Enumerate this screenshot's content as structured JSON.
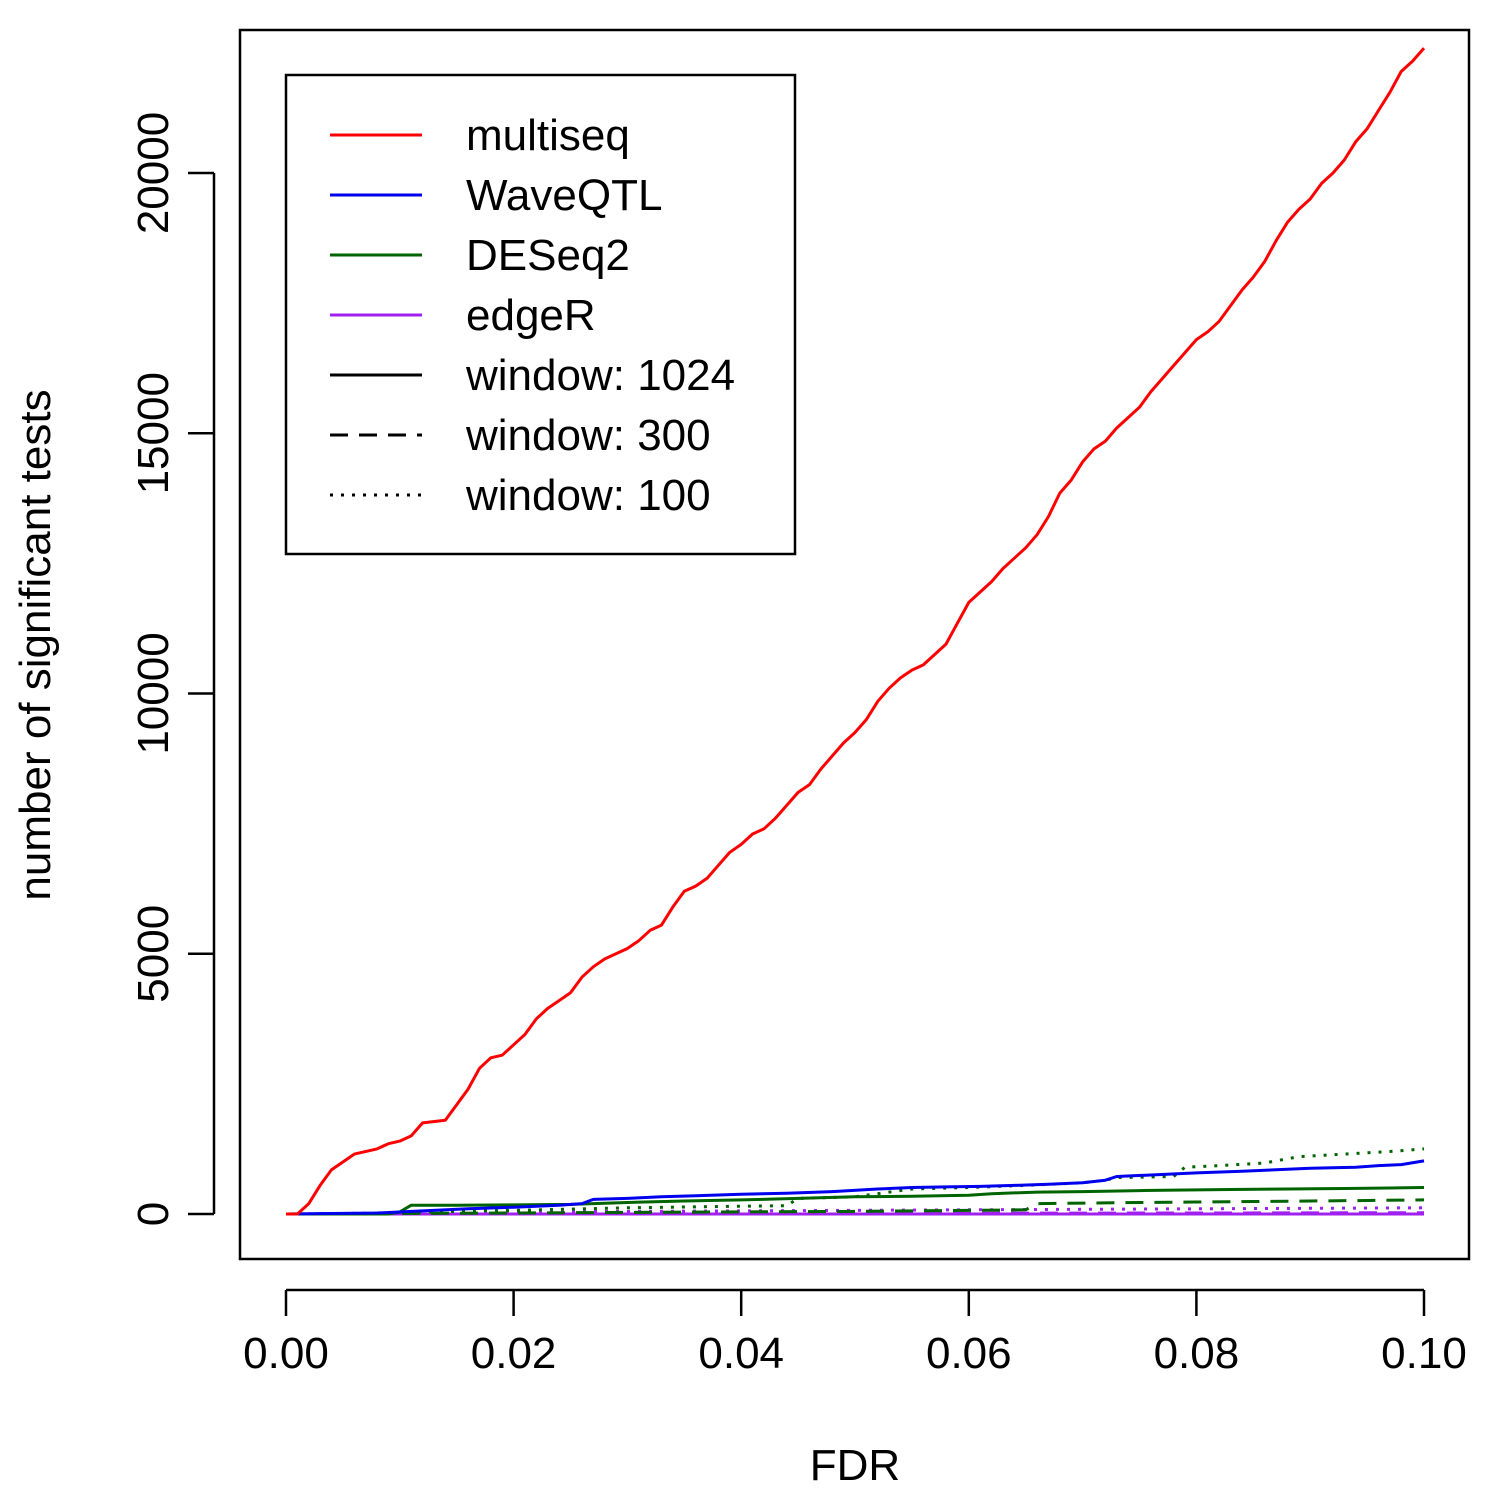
{
  "chart_data": {
    "type": "line",
    "title": "",
    "xlabel": "FDR",
    "ylabel": "number of significant tests",
    "xlim": [
      0.0,
      0.1
    ],
    "ylim": [
      0,
      22500
    ],
    "xticks": [
      0.0,
      0.02,
      0.04,
      0.06,
      0.08,
      0.1
    ],
    "xtick_labels": [
      "0.00",
      "0.02",
      "0.04",
      "0.06",
      "0.08",
      "0.10"
    ],
    "yticks": [
      0,
      5000,
      10000,
      15000,
      20000
    ],
    "ytick_labels": [
      "0",
      "5000",
      "10000",
      "15000",
      "20000"
    ],
    "grid": false,
    "legend_position": "top-left",
    "legend": [
      {
        "label": "multiseq",
        "color": "#ff0000",
        "linestyle": "solid"
      },
      {
        "label": "WaveQTL",
        "color": "#0000ee",
        "linestyle": "solid"
      },
      {
        "label": "DESeq2",
        "color": "#006400",
        "linestyle": "solid"
      },
      {
        "label": "edgeR",
        "color": "#a020f0",
        "linestyle": "solid"
      },
      {
        "label": "window: 1024",
        "color": "#000000",
        "linestyle": "solid"
      },
      {
        "label": "window: 300",
        "color": "#000000",
        "linestyle": "dashed"
      },
      {
        "label": "window: 100",
        "color": "#000000",
        "linestyle": "dotted"
      }
    ],
    "series": [
      {
        "method": "multiseq",
        "window": "1024",
        "color": "#ff0000",
        "linestyle": "solid",
        "x": [
          0.0,
          0.001,
          0.002,
          0.003,
          0.004,
          0.005,
          0.006,
          0.008,
          0.009,
          0.01,
          0.011,
          0.012,
          0.014,
          0.015,
          0.016,
          0.017,
          0.018,
          0.019,
          0.02,
          0.021,
          0.022,
          0.023,
          0.024,
          0.025,
          0.026,
          0.027,
          0.028,
          0.03,
          0.031,
          0.032,
          0.033,
          0.034,
          0.035,
          0.036,
          0.037,
          0.038,
          0.039,
          0.04,
          0.041,
          0.042,
          0.043,
          0.044,
          0.045,
          0.046,
          0.047,
          0.048,
          0.049,
          0.05,
          0.051,
          0.052,
          0.053,
          0.054,
          0.055,
          0.056,
          0.058,
          0.059,
          0.06,
          0.061,
          0.062,
          0.063,
          0.064,
          0.065,
          0.066,
          0.067,
          0.068,
          0.069,
          0.07,
          0.071,
          0.072,
          0.073,
          0.074,
          0.075,
          0.076,
          0.077,
          0.078,
          0.079,
          0.08,
          0.081,
          0.082,
          0.083,
          0.084,
          0.085,
          0.086,
          0.087,
          0.088,
          0.089,
          0.09,
          0.091,
          0.092,
          0.093,
          0.094,
          0.095,
          0.096,
          0.097,
          0.098,
          0.099,
          0.1
        ],
        "y": [
          0,
          0,
          200,
          550,
          850,
          1000,
          1150,
          1250,
          1350,
          1400,
          1500,
          1750,
          1800,
          2100,
          2400,
          2800,
          3000,
          3050,
          3250,
          3450,
          3750,
          3950,
          4100,
          4250,
          4550,
          4750,
          4900,
          5100,
          5250,
          5450,
          5550,
          5900,
          6200,
          6300,
          6450,
          6700,
          6950,
          7100,
          7300,
          7400,
          7600,
          7850,
          8100,
          8250,
          8550,
          8800,
          9050,
          9250,
          9500,
          9850,
          10100,
          10300,
          10450,
          10550,
          10950,
          11350,
          11750,
          11950,
          12150,
          12400,
          12600,
          12800,
          13050,
          13400,
          13850,
          14100,
          14450,
          14700,
          14850,
          15100,
          15300,
          15500,
          15800,
          16050,
          16300,
          16550,
          16800,
          16950,
          17150,
          17450,
          17750,
          18000,
          18300,
          18700,
          19050,
          19300,
          19500,
          19800,
          20000,
          20250,
          20600,
          20850,
          21200,
          21550,
          21950,
          22150,
          22400
        ]
      },
      {
        "method": "WaveQTL",
        "window": "1024",
        "color": "#0000ee",
        "linestyle": "solid",
        "x": [
          0.0,
          0.008,
          0.012,
          0.016,
          0.02,
          0.024,
          0.026,
          0.027,
          0.03,
          0.033,
          0.036,
          0.04,
          0.044,
          0.048,
          0.052,
          0.055,
          0.058,
          0.061,
          0.064,
          0.067,
          0.07,
          0.072,
          0.073,
          0.076,
          0.08,
          0.084,
          0.088,
          0.09,
          0.094,
          0.096,
          0.098,
          0.1
        ],
        "y": [
          0,
          20,
          60,
          100,
          130,
          170,
          200,
          280,
          300,
          330,
          350,
          380,
          400,
          430,
          480,
          510,
          520,
          530,
          550,
          570,
          600,
          650,
          720,
          750,
          790,
          820,
          860,
          880,
          900,
          930,
          950,
          1020
        ]
      },
      {
        "method": "DESeq2",
        "window": "1024",
        "color": "#006400",
        "linestyle": "solid",
        "x": [
          0.0,
          0.009,
          0.01,
          0.011,
          0.015,
          0.02,
          0.025,
          0.03,
          0.035,
          0.04,
          0.045,
          0.05,
          0.055,
          0.06,
          0.062,
          0.066,
          0.07,
          0.075,
          0.078,
          0.083,
          0.088,
          0.093,
          0.097,
          0.1
        ],
        "y": [
          0,
          0,
          40,
          170,
          170,
          175,
          185,
          220,
          250,
          270,
          300,
          330,
          340,
          360,
          390,
          420,
          430,
          450,
          460,
          470,
          480,
          490,
          500,
          510
        ]
      },
      {
        "method": "DESeq2",
        "window": "300",
        "color": "#006400",
        "linestyle": "dashed",
        "x": [
          0.0,
          0.01,
          0.02,
          0.03,
          0.04,
          0.05,
          0.06,
          0.065,
          0.066,
          0.07,
          0.075,
          0.08,
          0.085,
          0.09,
          0.095,
          0.1
        ],
        "y": [
          0,
          10,
          20,
          30,
          40,
          50,
          70,
          80,
          200,
          210,
          220,
          230,
          240,
          250,
          260,
          270
        ]
      },
      {
        "method": "DESeq2",
        "window": "100",
        "color": "#006400",
        "linestyle": "dotted",
        "x": [
          0.0,
          0.007,
          0.01,
          0.02,
          0.03,
          0.04,
          0.044,
          0.045,
          0.05,
          0.055,
          0.06,
          0.065,
          0.07,
          0.072,
          0.073,
          0.078,
          0.079,
          0.082,
          0.086,
          0.089,
          0.093,
          0.097,
          0.1
        ],
        "y": [
          0,
          0,
          30,
          70,
          120,
          150,
          160,
          300,
          330,
          480,
          510,
          550,
          600,
          650,
          700,
          720,
          900,
          930,
          980,
          1100,
          1150,
          1200,
          1250
        ]
      },
      {
        "method": "edgeR",
        "window": "1024",
        "color": "#a020f0",
        "linestyle": "solid",
        "x": [
          0.0,
          0.1
        ],
        "y": [
          0,
          0
        ]
      },
      {
        "method": "edgeR",
        "window": "300",
        "color": "#a020f0",
        "linestyle": "dashed",
        "x": [
          0.0,
          0.02,
          0.04,
          0.06,
          0.08,
          0.1
        ],
        "y": [
          0,
          5,
          10,
          15,
          20,
          25
        ]
      },
      {
        "method": "edgeR",
        "window": "100",
        "color": "#a020f0",
        "linestyle": "dotted",
        "x": [
          0.0,
          0.02,
          0.04,
          0.06,
          0.08,
          0.1
        ],
        "y": [
          0,
          40,
          60,
          80,
          100,
          120
        ]
      }
    ]
  }
}
